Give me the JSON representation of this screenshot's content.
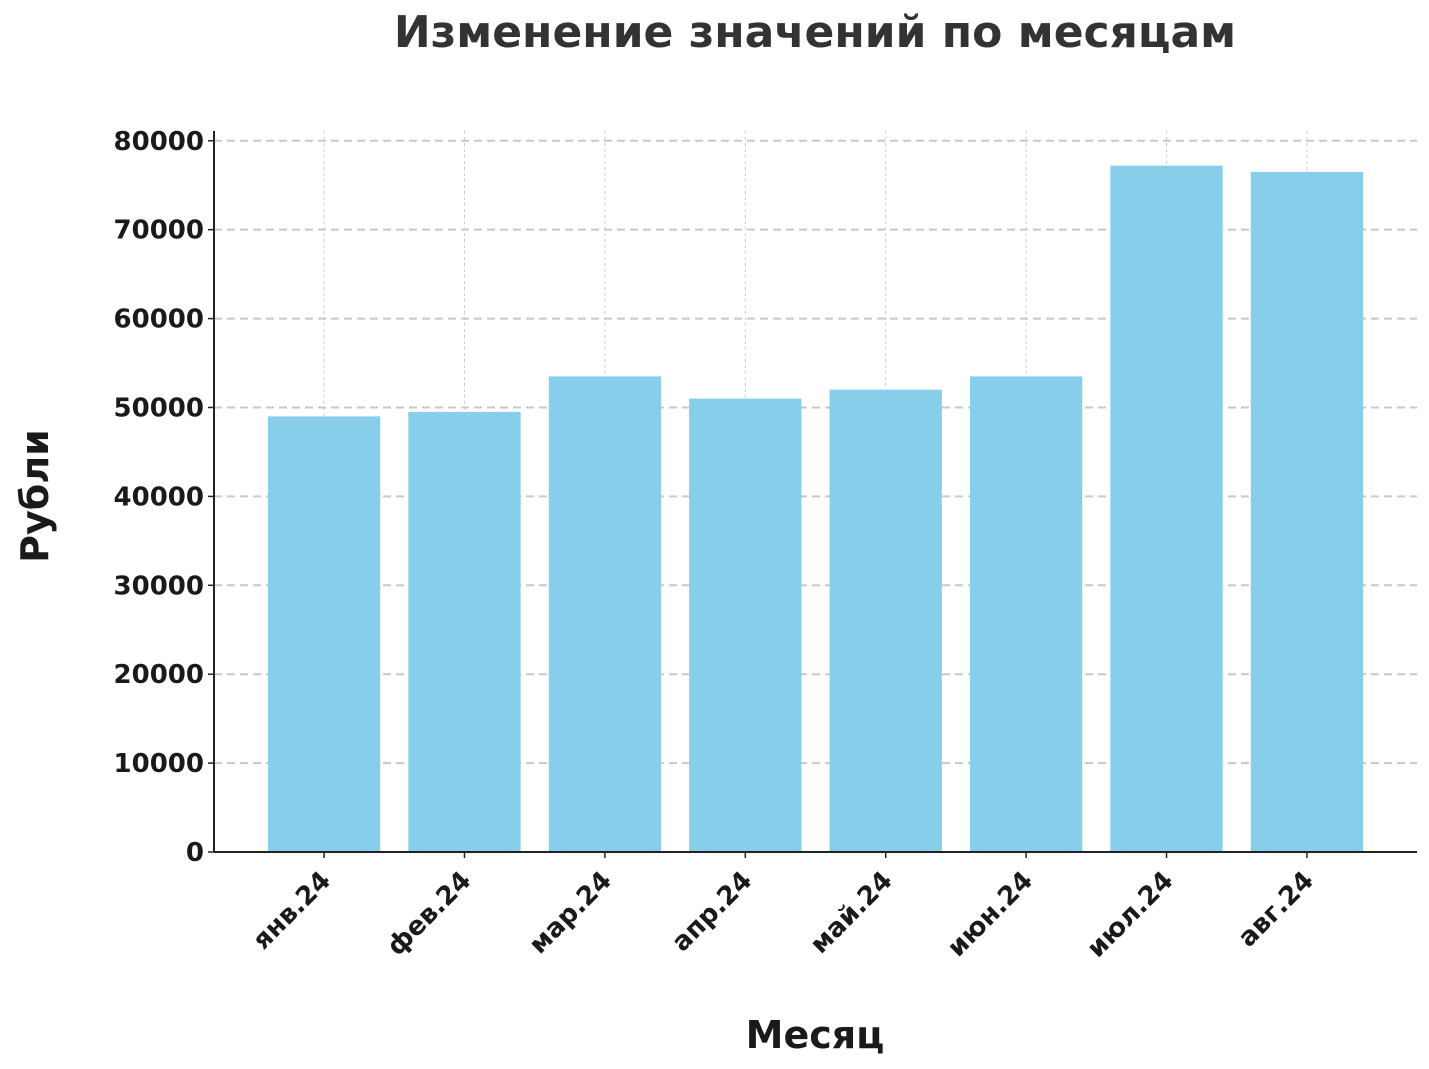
{
  "chart_data": {
    "type": "bar",
    "title": "Изменение значений по месяцам",
    "x_label": "Месяц",
    "y_label": "Рубли",
    "categories": [
      "янв.24",
      "фев.24",
      "мар.24",
      "апр.24",
      "май.24",
      "июн.24",
      "июл.24",
      "авг.24"
    ],
    "values": [
      49000,
      49500,
      53500,
      51000,
      52000,
      53500,
      77200,
      76500
    ],
    "color": "#87ceeb",
    "ylim": [
      0,
      81100
    ],
    "yticks": [
      0,
      10000,
      20000,
      30000,
      40000,
      50000,
      60000,
      70000,
      80000
    ],
    "grid": true
  }
}
